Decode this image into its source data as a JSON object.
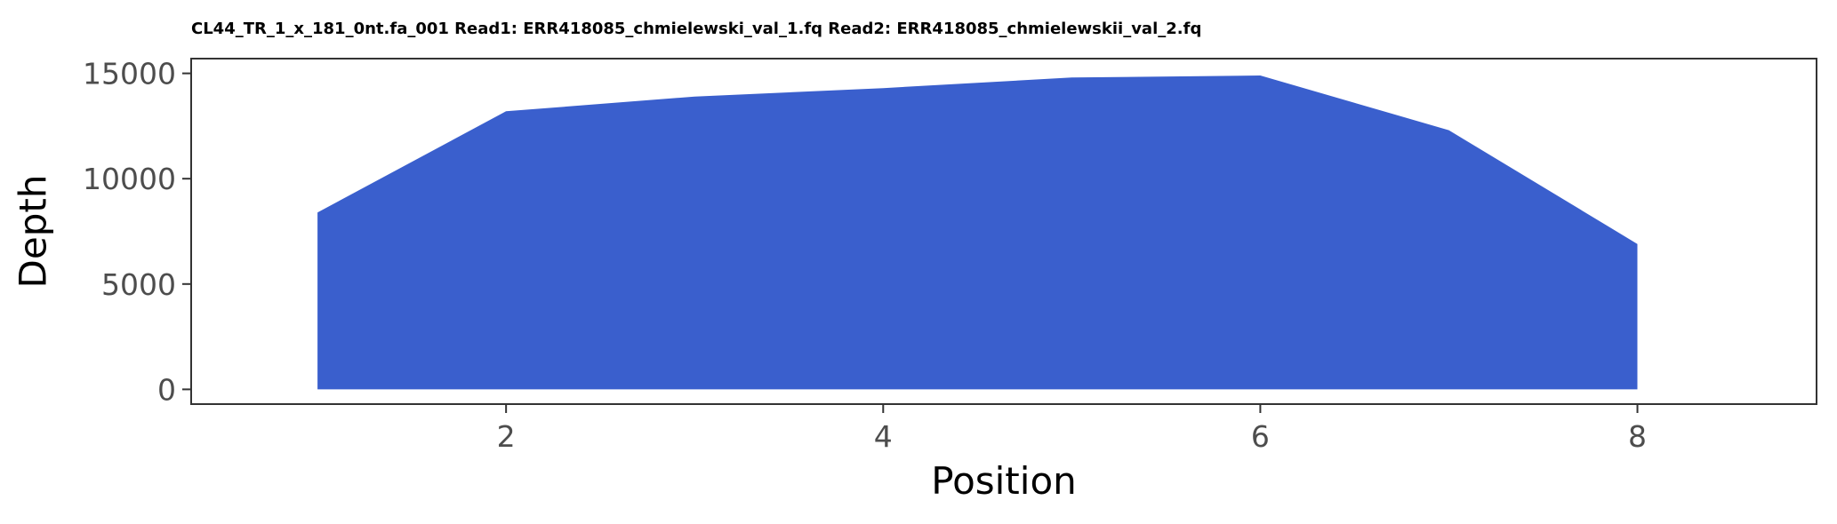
{
  "chart_data": {
    "type": "area",
    "title": "CL44_TR_1_x_181_0nt.fa_001 Read1: ERR418085_chmielewski_val_1.fq Read2: ERR418085_chmielewskii_val_2.fq",
    "xlabel": "Position",
    "ylabel": "Depth",
    "x": [
      1,
      2,
      3,
      4,
      5,
      6,
      7,
      8
    ],
    "y": [
      8400,
      13200,
      13900,
      14300,
      14800,
      14900,
      12300,
      6900
    ],
    "xlim": [
      0.33,
      8.95
    ],
    "ylim": [
      -700,
      15700
    ],
    "x_ticks": [
      2,
      4,
      6,
      8
    ],
    "x_tick_labels": [
      "2",
      "4",
      "6",
      "8"
    ],
    "y_ticks": [
      0,
      5000,
      10000,
      15000
    ],
    "y_tick_labels": [
      "0",
      "5000",
      "10000",
      "15000"
    ],
    "fill_color": "#3a5fcd",
    "grid": false,
    "legend": "none"
  }
}
